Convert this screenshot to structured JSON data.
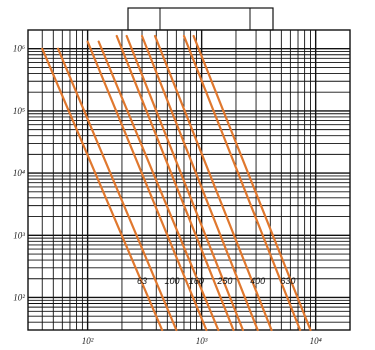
{
  "chart_data": {
    "type": "line",
    "title": "",
    "xlabel": "",
    "ylabel": "",
    "x_scale": "log",
    "y_scale": "log",
    "x_ticks": [
      {
        "value": 100,
        "label": "10²"
      },
      {
        "value": 1000,
        "label": "10³"
      },
      {
        "value": 10000,
        "label": "10⁴"
      }
    ],
    "y_ticks": [
      {
        "value": 1000000,
        "label": "10⁶"
      },
      {
        "value": 100000,
        "label": "10⁵"
      },
      {
        "value": 10000,
        "label": "10⁴"
      },
      {
        "value": 1000,
        "label": "10³"
      },
      {
        "value": 100,
        "label": "10²"
      }
    ],
    "xlim": [
      30,
      20000
    ],
    "ylim": [
      30,
      2000000
    ],
    "grid": true,
    "line_color": "#e0782e",
    "series": [
      {
        "label": "63",
        "points": [
          [
            40,
            1000000
          ],
          [
            450,
            30
          ]
        ]
      },
      {
        "label": "",
        "points": [
          [
            55,
            1000000
          ],
          [
            600,
            30
          ]
        ]
      },
      {
        "label": "100",
        "points": [
          [
            100,
            1300000
          ],
          [
            1100,
            30
          ]
        ]
      },
      {
        "label": "",
        "points": [
          [
            125,
            1300000
          ],
          [
            1400,
            30
          ]
        ]
      },
      {
        "label": "",
        "points": [
          [
            180,
            1600000
          ],
          [
            1900,
            30
          ]
        ]
      },
      {
        "label": "160",
        "points": [
          [
            220,
            1600000
          ],
          [
            2300,
            30
          ]
        ]
      },
      {
        "label": "",
        "points": [
          [
            300,
            1600000
          ],
          [
            3100,
            30
          ]
        ]
      },
      {
        "label": "250",
        "points": [
          [
            390,
            1600000
          ],
          [
            4100,
            30
          ]
        ]
      },
      {
        "label": "400",
        "points": [
          [
            700,
            1600000
          ],
          [
            7300,
            30
          ]
        ]
      },
      {
        "label": "630",
        "points": [
          [
            850,
            1600000
          ],
          [
            9000,
            30
          ]
        ]
      }
    ],
    "curve_labels": [
      {
        "text": "63",
        "x": 300,
        "y": 165
      },
      {
        "text": "100",
        "x": 550,
        "y": 165
      },
      {
        "text": "160",
        "x": 900,
        "y": 165
      },
      {
        "text": "250",
        "x": 1600,
        "y": 165
      },
      {
        "text": "400",
        "x": 3100,
        "y": 165
      },
      {
        "text": "630",
        "x": 5700,
        "y": 165
      }
    ]
  }
}
